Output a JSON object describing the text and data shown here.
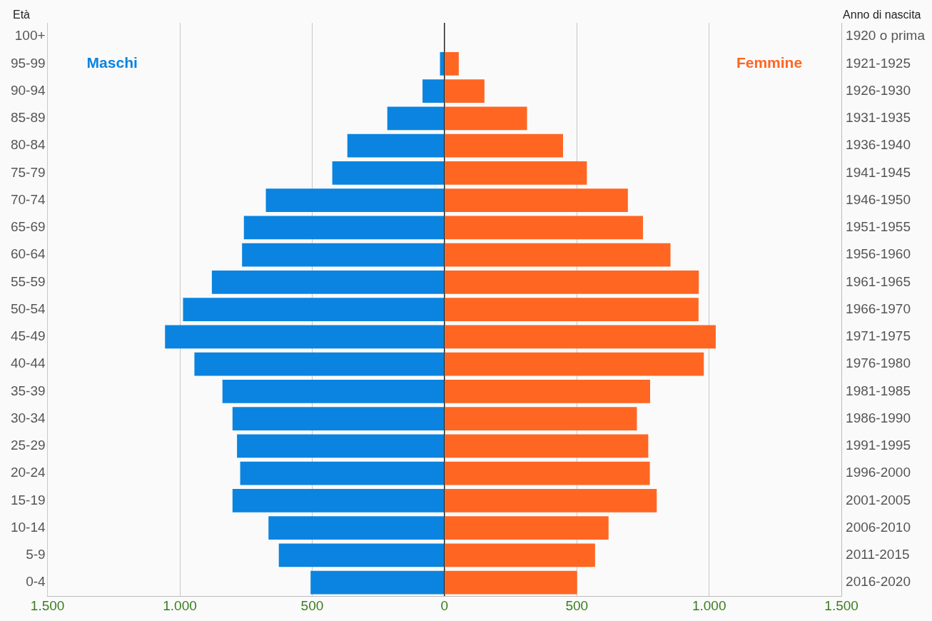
{
  "chart_data": {
    "type": "bar",
    "orientation": "horizontal",
    "stacked": true,
    "ylabel": "Età",
    "y2label": "Anno di nascita",
    "categories": [
      "100+",
      "95-99",
      "90-94",
      "85-89",
      "80-84",
      "75-79",
      "70-74",
      "65-69",
      "60-64",
      "55-59",
      "50-54",
      "45-49",
      "40-44",
      "35-39",
      "30-34",
      "25-29",
      "20-24",
      "15-19",
      "10-14",
      "5-9",
      "0-4"
    ],
    "y2_categories": [
      "1920 o prima",
      "1921-1925",
      "1926-1930",
      "1931-1935",
      "1936-1940",
      "1941-1945",
      "1946-1950",
      "1951-1955",
      "1956-1960",
      "1961-1965",
      "1966-1970",
      "1971-1975",
      "1976-1980",
      "1981-1985",
      "1986-1990",
      "1991-1995",
      "1996-2000",
      "2001-2005",
      "2006-2010",
      "2011-2015",
      "2016-2020"
    ],
    "series": [
      {
        "name": "Maschi",
        "color": "#0a84e0",
        "values": [
          0,
          -17,
          -83,
          -216,
          -367,
          -424,
          -675,
          -758,
          -765,
          -879,
          -988,
          -1056,
          -945,
          -839,
          -801,
          -784,
          -772,
          -801,
          -665,
          -626,
          -506
        ]
      },
      {
        "name": "Femmine",
        "color": "#ff6622",
        "values": [
          0,
          54,
          151,
          312,
          448,
          538,
          693,
          750,
          854,
          961,
          960,
          1025,
          980,
          777,
          727,
          770,
          776,
          802,
          620,
          569,
          501
        ]
      }
    ],
    "xlim": [
      -1500,
      1500
    ],
    "xticks": [
      {
        "value": -1500,
        "label": "1.500"
      },
      {
        "value": -1000,
        "label": "1.000"
      },
      {
        "value": -500,
        "label": "500"
      },
      0,
      500,
      {
        "value": 1000,
        "label": "1.000"
      },
      {
        "value": 1500,
        "label": "1.500"
      }
    ],
    "grid": "x",
    "legend": false
  }
}
